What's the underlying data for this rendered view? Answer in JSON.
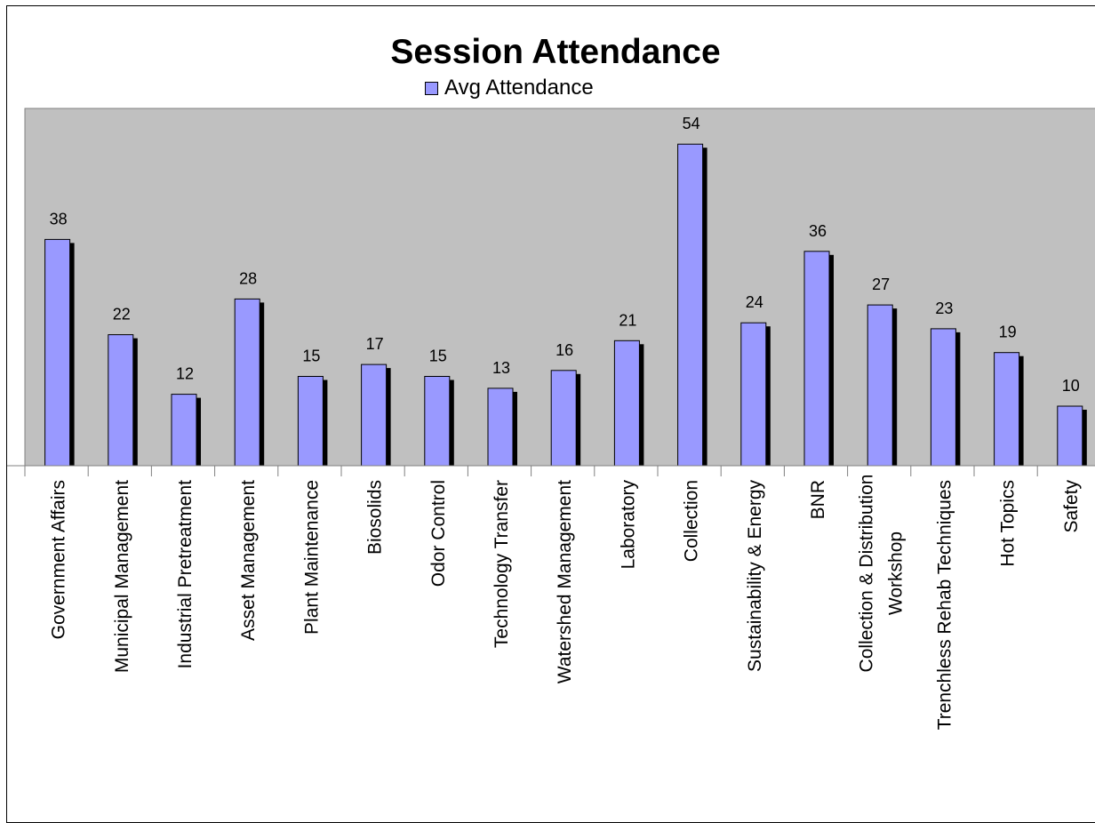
{
  "chart_data": {
    "type": "bar",
    "title": "Session Attendance",
    "xlabel": "",
    "ylabel": "",
    "ylim": [
      0,
      60
    ],
    "grid": false,
    "legend_position": "top",
    "categories": [
      "Government Affairs",
      "Municipal Management",
      "Industrial Pretreatment",
      "Asset Management",
      "Plant Maintenance",
      "Biosolids",
      "Odor Control",
      "Technology Transfer",
      "Watershed Management",
      "Laboratory",
      "Collection",
      "Sustainability & Energy",
      "BNR",
      "Collection & Distribution Workshop",
      "Trenchless Rehab Techniques",
      "Hot Topics",
      "Safety"
    ],
    "series": [
      {
        "name": "Avg Attendance",
        "values": [
          38,
          22,
          12,
          28,
          15,
          17,
          15,
          13,
          16,
          21,
          54,
          24,
          36,
          27,
          23,
          19,
          10
        ]
      }
    ],
    "data_labels": [
      "38",
      "22",
      "12",
      "28",
      "15",
      "17",
      "15",
      "13",
      "16",
      "21",
      "54",
      "24",
      "36",
      "27",
      "23",
      "19",
      "10"
    ]
  },
  "colors": {
    "bar_fill": "#9999ff",
    "bar_shadow": "#000000",
    "plot_background": "#c0c0c0",
    "axis": "#808080"
  }
}
